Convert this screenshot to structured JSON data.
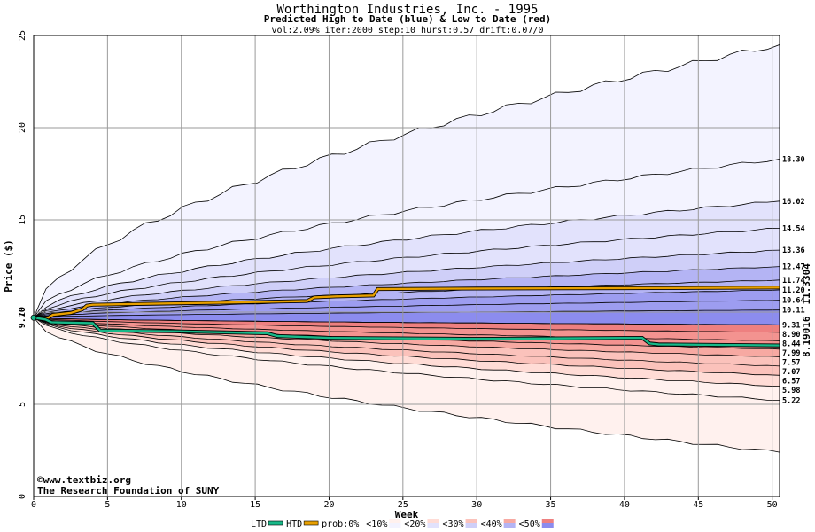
{
  "chart_data": {
    "type": "area",
    "title": "Worthington Industries, Inc. - 1995",
    "subtitle": "Predicted High to Date (blue) &  Low to Date (red)",
    "params": "vol:2.09% iter:2000 step:10 hurst:0.57 drift:0.07/0",
    "xlabel": "Week",
    "ylabel": "Price ($)",
    "xlim": [
      0,
      50.5
    ],
    "ylim": [
      0,
      25
    ],
    "x_ticks": [
      0,
      5,
      10,
      15,
      20,
      25,
      30,
      35,
      40,
      45,
      50
    ],
    "y_ticks": [
      5,
      10,
      15,
      20,
      25
    ],
    "start_price": 9.7,
    "start_price_label": "9.70",
    "grid": true,
    "credit": [
      "©www.textbiz.org",
      "The Research Foundation of SUNY"
    ],
    "colors": {
      "htd": "#e8a000",
      "ltd": "#18b888",
      "blue_bands": [
        "#f3f3ff",
        "#e2e2fc",
        "#cfcff8",
        "#b4b4f4",
        "#9d9df0",
        "#8c8cee"
      ],
      "red_bands": [
        "#fff1ee",
        "#ffdcd6",
        "#fbc2bb",
        "#f7a9a2",
        "#f39390",
        "#ee8080"
      ]
    },
    "end_labels": [
      {
        "value": 18.3,
        "text": "18.30"
      },
      {
        "value": 16.02,
        "text": "16.02"
      },
      {
        "value": 14.54,
        "text": "14.54"
      },
      {
        "value": 13.36,
        "text": "13.36"
      },
      {
        "value": 12.47,
        "text": "12.47"
      },
      {
        "value": 11.74,
        "text": "11.74"
      },
      {
        "value": 11.2,
        "text": "11.20"
      },
      {
        "value": 10.64,
        "text": "10.64"
      },
      {
        "value": 10.11,
        "text": "10.11"
      },
      {
        "value": 9.31,
        "text": "9.31"
      },
      {
        "value": 8.9,
        "text": "8.90"
      },
      {
        "value": 8.44,
        "text": "8.44"
      },
      {
        "value": 7.99,
        "text": "7.99"
      },
      {
        "value": 7.57,
        "text": "7.57"
      },
      {
        "value": 7.07,
        "text": "7.07"
      },
      {
        "value": 6.57,
        "text": "6.57"
      },
      {
        "value": 5.98,
        "text": "5.98"
      },
      {
        "value": 5.22,
        "text": "5.22"
      }
    ],
    "upper_bounds_end": [
      24.5,
      18.3,
      16.02,
      14.54,
      13.36,
      12.47,
      11.74,
      11.2,
      10.64,
      10.11,
      9.31
    ],
    "lower_bounds_end": [
      9.31,
      8.9,
      8.44,
      7.99,
      7.57,
      7.07,
      6.57,
      5.98,
      5.22,
      2.4
    ],
    "series": [
      {
        "name": "HTD",
        "end_label": "11.3304",
        "x": [
          0,
          1,
          1.3,
          2.5,
          3.3,
          3.6,
          4,
          8,
          12,
          18.5,
          19,
          20.5,
          23,
          23.3,
          30,
          40,
          50.5
        ],
        "y": [
          9.7,
          9.7,
          9.85,
          9.95,
          10.15,
          10.35,
          10.4,
          10.45,
          10.5,
          10.6,
          10.8,
          10.85,
          10.9,
          11.25,
          11.28,
          11.3,
          11.33
        ]
      },
      {
        "name": "LTD",
        "end_label": "8.19016",
        "x": [
          0,
          0.8,
          1.2,
          4,
          4.5,
          10,
          15.8,
          16.5,
          20,
          30,
          41.2,
          41.7,
          42.3,
          50.5
        ],
        "y": [
          9.7,
          9.6,
          9.45,
          9.4,
          9.0,
          8.95,
          8.85,
          8.7,
          8.6,
          8.55,
          8.6,
          8.3,
          8.25,
          8.19
        ]
      }
    ],
    "legend": [
      {
        "text": "LTD",
        "swatch": "line",
        "color": "#18b888"
      },
      {
        "text": "HTD",
        "swatch": "line",
        "color": "#e8a000"
      },
      {
        "text": "prob:0%",
        "swatch": "none",
        "color": ""
      },
      {
        "text": "<10%",
        "swatch": "box",
        "color": "#f3f3ff",
        "color2": "#fff1ee"
      },
      {
        "text": "<20%",
        "swatch": "box",
        "color": "#e2e2fc",
        "color2": "#ffdcd6"
      },
      {
        "text": "<30%",
        "swatch": "box",
        "color": "#cfcff8",
        "color2": "#fbc2bb"
      },
      {
        "text": "<40%",
        "swatch": "box",
        "color": "#b4b4f4",
        "color2": "#f7a9a2"
      },
      {
        "text": "<50%",
        "swatch": "box",
        "color": "#8c8cee",
        "color2": "#ee8080"
      }
    ]
  }
}
